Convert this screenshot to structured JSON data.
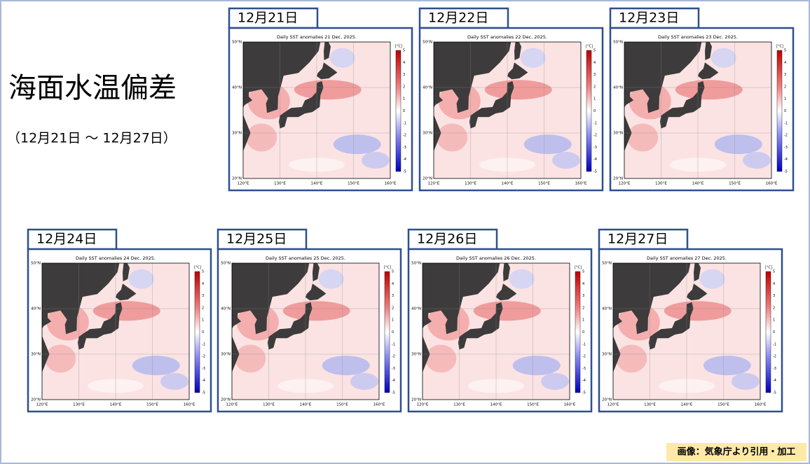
{
  "header": {
    "title": "海面水温偏差",
    "subtitle": "（12月21日 ～ 12月27日）"
  },
  "panels": [
    {
      "tab": "12月21日",
      "map_title": "Daily SST anomalies 21 Dec. 2025."
    },
    {
      "tab": "12月22日",
      "map_title": "Daily SST anomalies 22 Dec. 2025."
    },
    {
      "tab": "12月23日",
      "map_title": "Daily SST anomalies 23 Dec. 2025."
    },
    {
      "tab": "12月24日",
      "map_title": "Daily SST anomalies 24 Dec. 2025."
    },
    {
      "tab": "12月25日",
      "map_title": "Daily SST anomalies 25 Dec. 2025."
    },
    {
      "tab": "12月26日",
      "map_title": "Daily SST anomalies 26 Dec. 2025."
    },
    {
      "tab": "12月27日",
      "map_title": "Daily SST anomalies 27 Dec. 2025."
    }
  ],
  "map_axes": {
    "lat_labels": [
      "50°N",
      "40°N",
      "30°N",
      "20°N"
    ],
    "lon_labels": [
      "120°E",
      "130°E",
      "140°E",
      "150°E",
      "160°E"
    ],
    "colorbar_unit": "[°C]",
    "colorbar_labels": [
      "5",
      "4",
      "3",
      "2",
      "1",
      "0",
      "-1",
      "-2",
      "-3",
      "-4",
      "-5"
    ]
  },
  "credit": "画像：気象庁より引用・加工"
}
